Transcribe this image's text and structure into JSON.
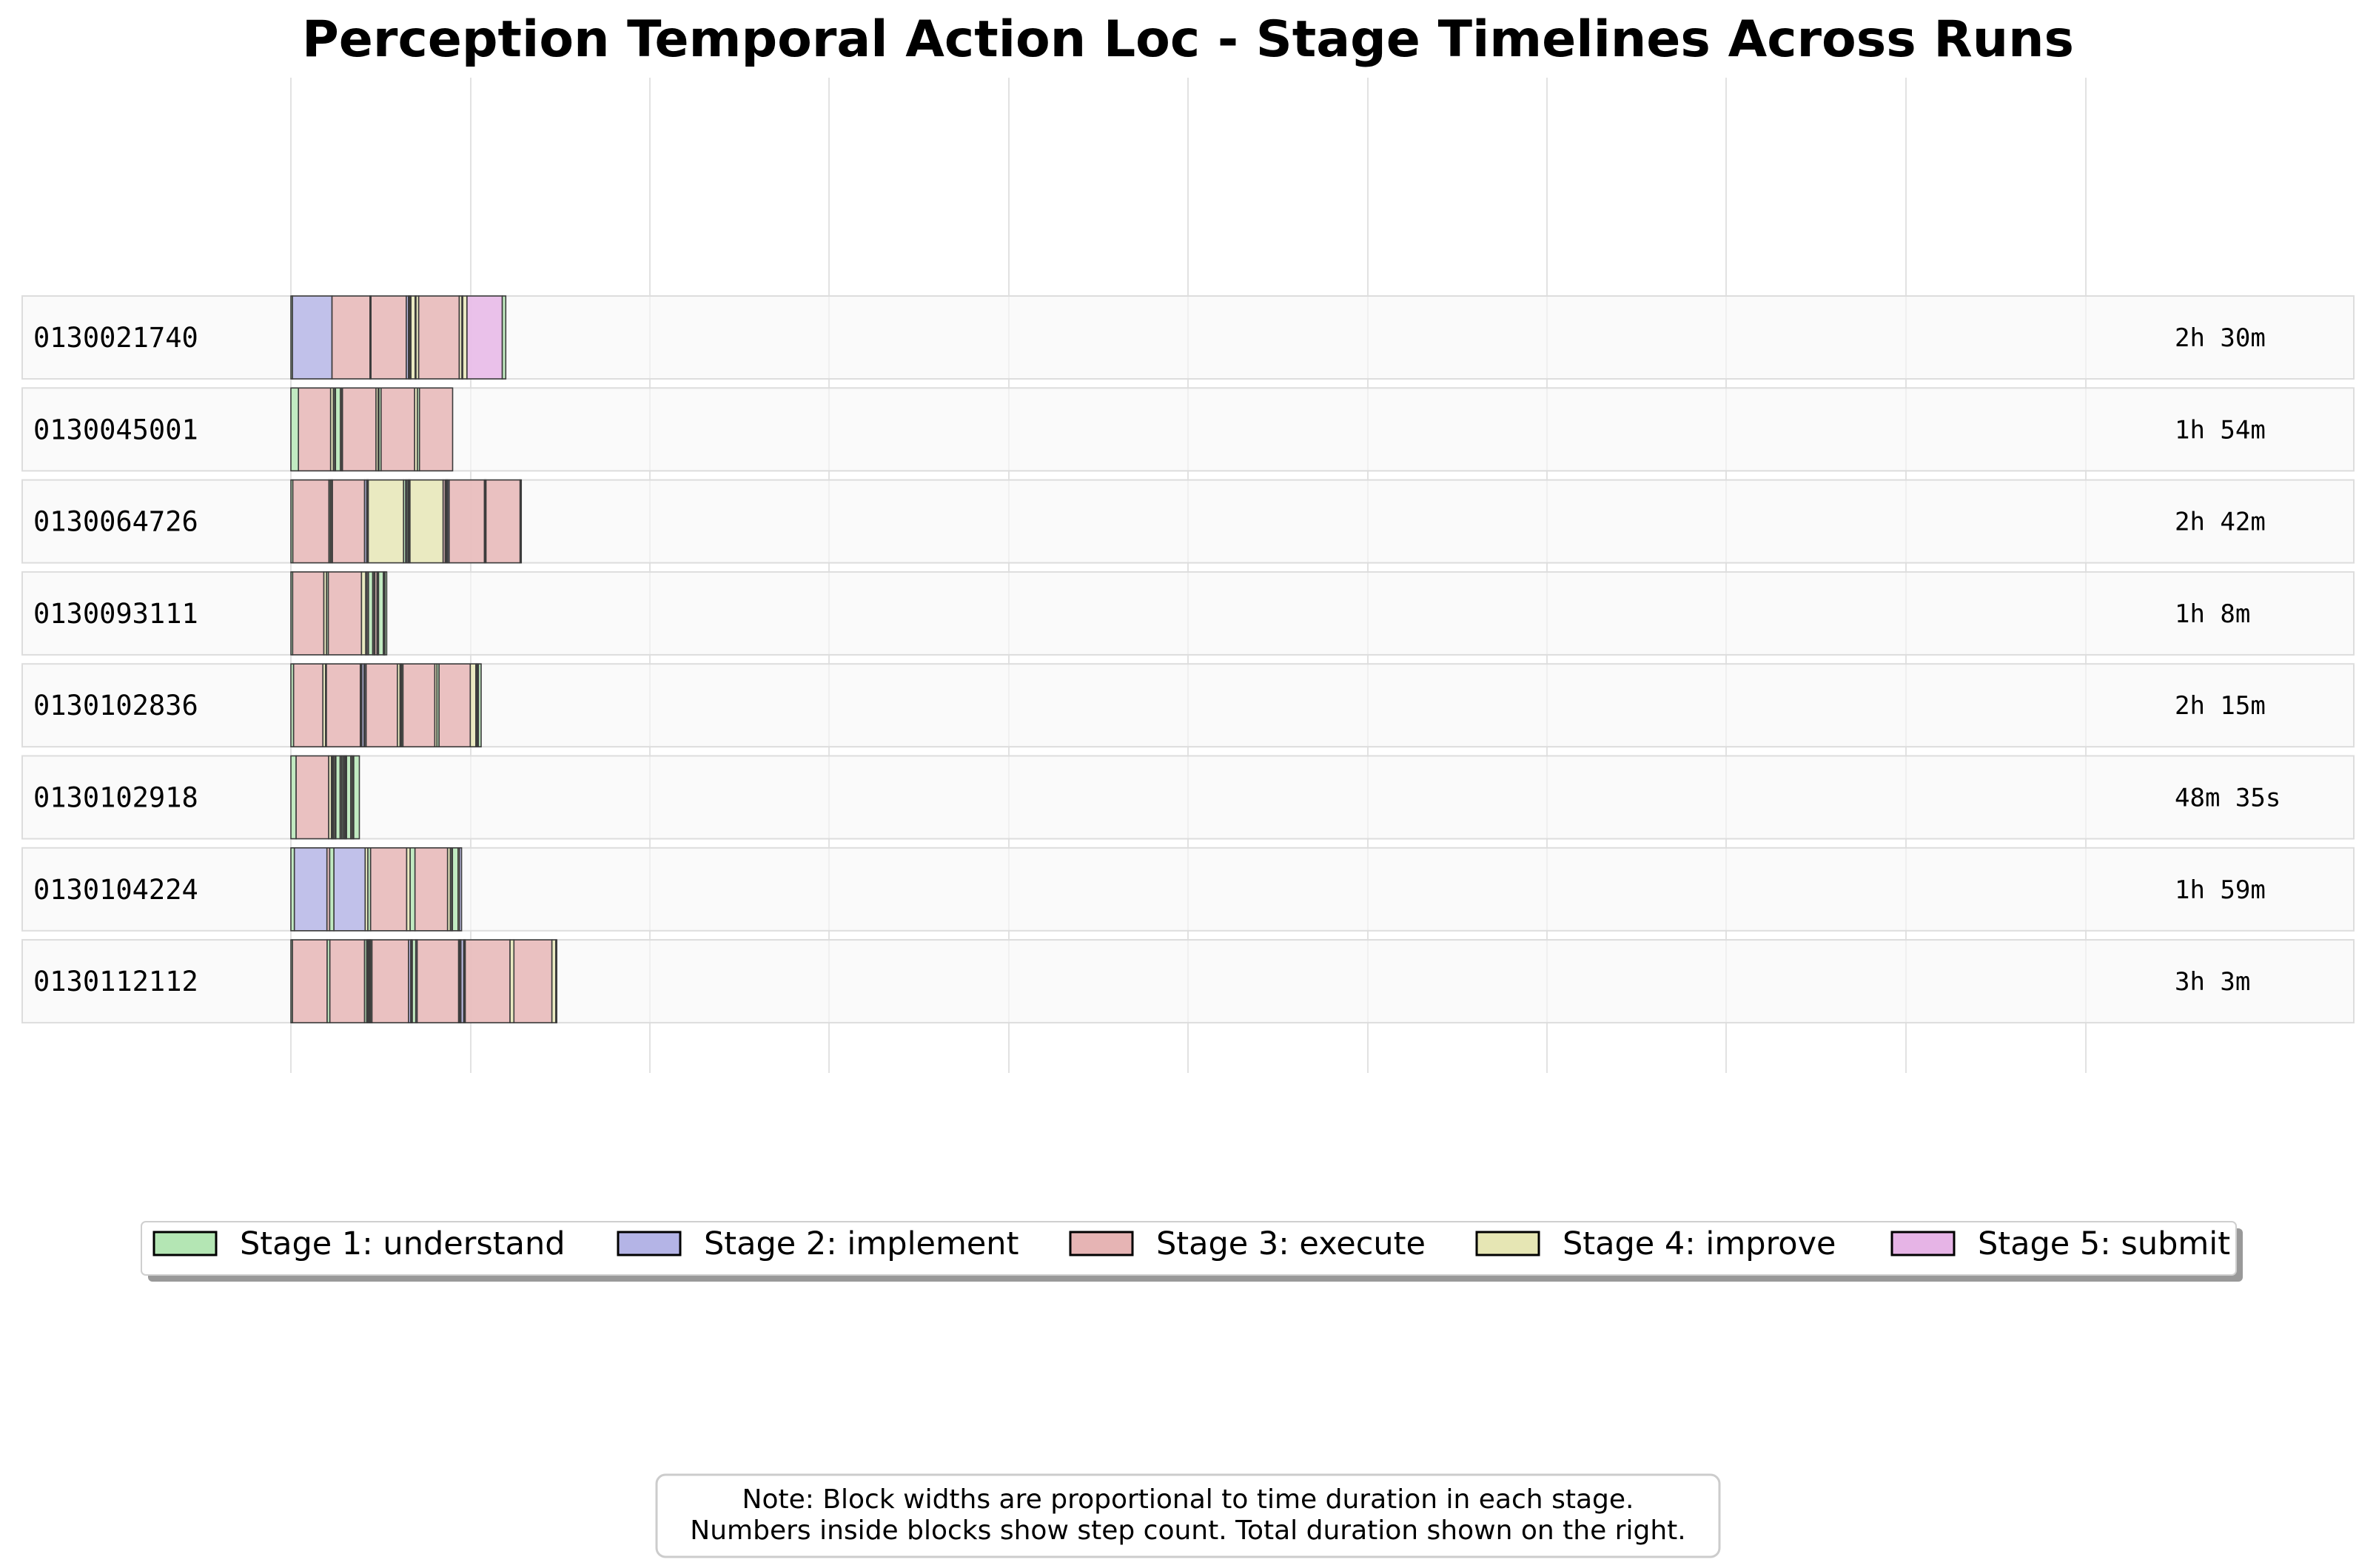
{
  "chart_data": {
    "type": "gantt-timeline",
    "title": "Perception Temporal Action Loc - Stage Timelines Across Runs",
    "grid": "vertical",
    "time_unit": "minutes",
    "stages": [
      {
        "id": 1,
        "label": "Stage 1: understand",
        "color": "#b4e6b4"
      },
      {
        "id": 2,
        "label": "Stage 2: implement",
        "color": "#b4b4e6"
      },
      {
        "id": 3,
        "label": "Stage 3: execute",
        "color": "#e6b4b4"
      },
      {
        "id": 4,
        "label": "Stage 4: improve",
        "color": "#e6e6b4"
      },
      {
        "id": 5,
        "label": "Stage 5: submit",
        "color": "#e6b4e6"
      }
    ],
    "runs": [
      {
        "id": "0130021740",
        "duration": "2h 30m",
        "segments": [
          [
            1,
            0.8
          ],
          [
            2,
            20.4
          ],
          [
            3,
            19.6
          ],
          [
            2,
            0.5
          ],
          [
            3,
            18.2
          ],
          [
            2,
            1.1
          ],
          [
            1,
            0.4
          ],
          [
            2,
            0.5
          ],
          [
            1,
            0.4
          ],
          [
            4,
            2.2
          ],
          [
            3,
            0.4
          ],
          [
            4,
            1.4
          ],
          [
            3,
            20.9
          ],
          [
            4,
            1.4
          ],
          [
            3,
            0.4
          ],
          [
            4,
            2.2
          ],
          [
            5,
            18.2
          ],
          [
            1,
            1.8
          ]
        ]
      },
      {
        "id": "0130045001",
        "duration": "1h 54m",
        "segments": [
          [
            1,
            3.9
          ],
          [
            3,
            16.6
          ],
          [
            4,
            1.4
          ],
          [
            1,
            0.7
          ],
          [
            2,
            0.4
          ],
          [
            1,
            2.5
          ],
          [
            4,
            0.7
          ],
          [
            2,
            0.4
          ],
          [
            3,
            17.3
          ],
          [
            4,
            1.1
          ],
          [
            2,
            0.4
          ],
          [
            1,
            1.1
          ],
          [
            3,
            17.3
          ],
          [
            4,
            1.4
          ],
          [
            1,
            1.1
          ],
          [
            3,
            17.1
          ]
        ]
      },
      {
        "id": "0130064726",
        "duration": "2h 42m",
        "segments": [
          [
            1,
            1.0
          ],
          [
            3,
            18.6
          ],
          [
            1,
            0.7
          ],
          [
            4,
            0.7
          ],
          [
            1,
            0.4
          ],
          [
            3,
            16.6
          ],
          [
            2,
            1.1
          ],
          [
            1,
            0.4
          ],
          [
            2,
            0.4
          ],
          [
            4,
            18.2
          ],
          [
            1,
            1.1
          ],
          [
            2,
            0.7
          ],
          [
            1,
            0.7
          ],
          [
            2,
            0.4
          ],
          [
            3,
            0.4
          ],
          [
            4,
            17.1
          ],
          [
            3,
            1.1
          ],
          [
            1,
            0.5
          ],
          [
            4,
            0.4
          ],
          [
            1,
            0.4
          ],
          [
            2,
            0.7
          ],
          [
            3,
            18.2
          ],
          [
            4,
            0.4
          ],
          [
            1,
            0.4
          ],
          [
            3,
            17.6
          ],
          [
            1,
            0.6
          ]
        ]
      },
      {
        "id": "0130093111",
        "duration": "1h 8m",
        "segments": [
          [
            1,
            0.9
          ],
          [
            3,
            16.1
          ],
          [
            4,
            1.4
          ],
          [
            1,
            0.9
          ],
          [
            3,
            17.1
          ],
          [
            4,
            2.2
          ],
          [
            2,
            0.7
          ],
          [
            3,
            0.7
          ],
          [
            1,
            2.2
          ],
          [
            3,
            0.7
          ],
          [
            1,
            0.4
          ],
          [
            3,
            1.1
          ],
          [
            1,
            0.4
          ],
          [
            4,
            0.4
          ],
          [
            1,
            2.5
          ],
          [
            3,
            0.4
          ],
          [
            4,
            0.4
          ],
          [
            1,
            0.9
          ]
        ]
      },
      {
        "id": "0130102836",
        "duration": "2h 15m",
        "segments": [
          [
            1,
            1.4
          ],
          [
            3,
            15.1
          ],
          [
            4,
            1.4
          ],
          [
            1,
            0.4
          ],
          [
            3,
            17.5
          ],
          [
            1,
            0.4
          ],
          [
            4,
            0.4
          ],
          [
            2,
            1.1
          ],
          [
            4,
            0.4
          ],
          [
            2,
            0.7
          ],
          [
            3,
            16.1
          ],
          [
            4,
            1.4
          ],
          [
            2,
            0.4
          ],
          [
            1,
            0.4
          ],
          [
            1,
            0.7
          ],
          [
            3,
            16.4
          ],
          [
            4,
            1.1
          ],
          [
            1,
            1.1
          ],
          [
            3,
            16.1
          ],
          [
            4,
            2.9
          ],
          [
            1,
            0.4
          ],
          [
            4,
            0.4
          ],
          [
            2,
            0.5
          ],
          [
            1,
            1.4
          ]
        ]
      },
      {
        "id": "0130102918",
        "duration": "48m 35s",
        "segments": [
          [
            1,
            2.7
          ],
          [
            3,
            16.8
          ],
          [
            4,
            1.4
          ],
          [
            1,
            0.4
          ],
          [
            3,
            0.4
          ],
          [
            1,
            0.4
          ],
          [
            4,
            0.7
          ],
          [
            3,
            0.4
          ],
          [
            1,
            2.2
          ],
          [
            4,
            0.7
          ],
          [
            1,
            0.7
          ],
          [
            4,
            0.7
          ],
          [
            3,
            0.4
          ],
          [
            1,
            0.4
          ],
          [
            3,
            0.4
          ],
          [
            1,
            2.2
          ],
          [
            3,
            0.4
          ],
          [
            4,
            0.7
          ],
          [
            3,
            0.4
          ],
          [
            1,
            2.9
          ]
        ]
      },
      {
        "id": "0130104224",
        "duration": "1h 59m",
        "segments": [
          [
            1,
            1.8
          ],
          [
            2,
            16.8
          ],
          [
            3,
            1.4
          ],
          [
            1,
            2.2
          ],
          [
            2,
            16.1
          ],
          [
            4,
            1.4
          ],
          [
            1,
            1.4
          ],
          [
            3,
            18.6
          ],
          [
            4,
            1.8
          ],
          [
            1,
            2.5
          ],
          [
            3,
            16.8
          ],
          [
            4,
            1.4
          ],
          [
            1,
            0.7
          ],
          [
            2,
            0.4
          ],
          [
            1,
            2.9
          ],
          [
            4,
            0.7
          ],
          [
            2,
            1.1
          ]
        ]
      },
      {
        "id": "0130112112",
        "duration": "3h 3m",
        "segments": [
          [
            1,
            0.8
          ],
          [
            3,
            17.9
          ],
          [
            1,
            1.4
          ],
          [
            3,
            17.9
          ],
          [
            1,
            1.1
          ],
          [
            4,
            0.4
          ],
          [
            1,
            0.4
          ],
          [
            2,
            0.4
          ],
          [
            1,
            0.4
          ],
          [
            4,
            0.4
          ],
          [
            1,
            0.7
          ],
          [
            3,
            18.9
          ],
          [
            2,
            1.1
          ],
          [
            1,
            0.4
          ],
          [
            2,
            0.4
          ],
          [
            1,
            1.8
          ],
          [
            2,
            0.7
          ],
          [
            3,
            21.4
          ],
          [
            1,
            0.4
          ],
          [
            4,
            0.4
          ],
          [
            1,
            0.4
          ],
          [
            2,
            1.4
          ],
          [
            1,
            0.4
          ],
          [
            3,
            0.4
          ],
          [
            3,
            23.1
          ],
          [
            4,
            2.0
          ],
          [
            3,
            19.6
          ],
          [
            4,
            2.0
          ],
          [
            1,
            0.5
          ]
        ]
      }
    ]
  },
  "note": {
    "line1": "Note: Block widths are proportional to time duration in each stage.",
    "line2": "Numbers inside blocks show step count. Total duration shown on the right."
  }
}
